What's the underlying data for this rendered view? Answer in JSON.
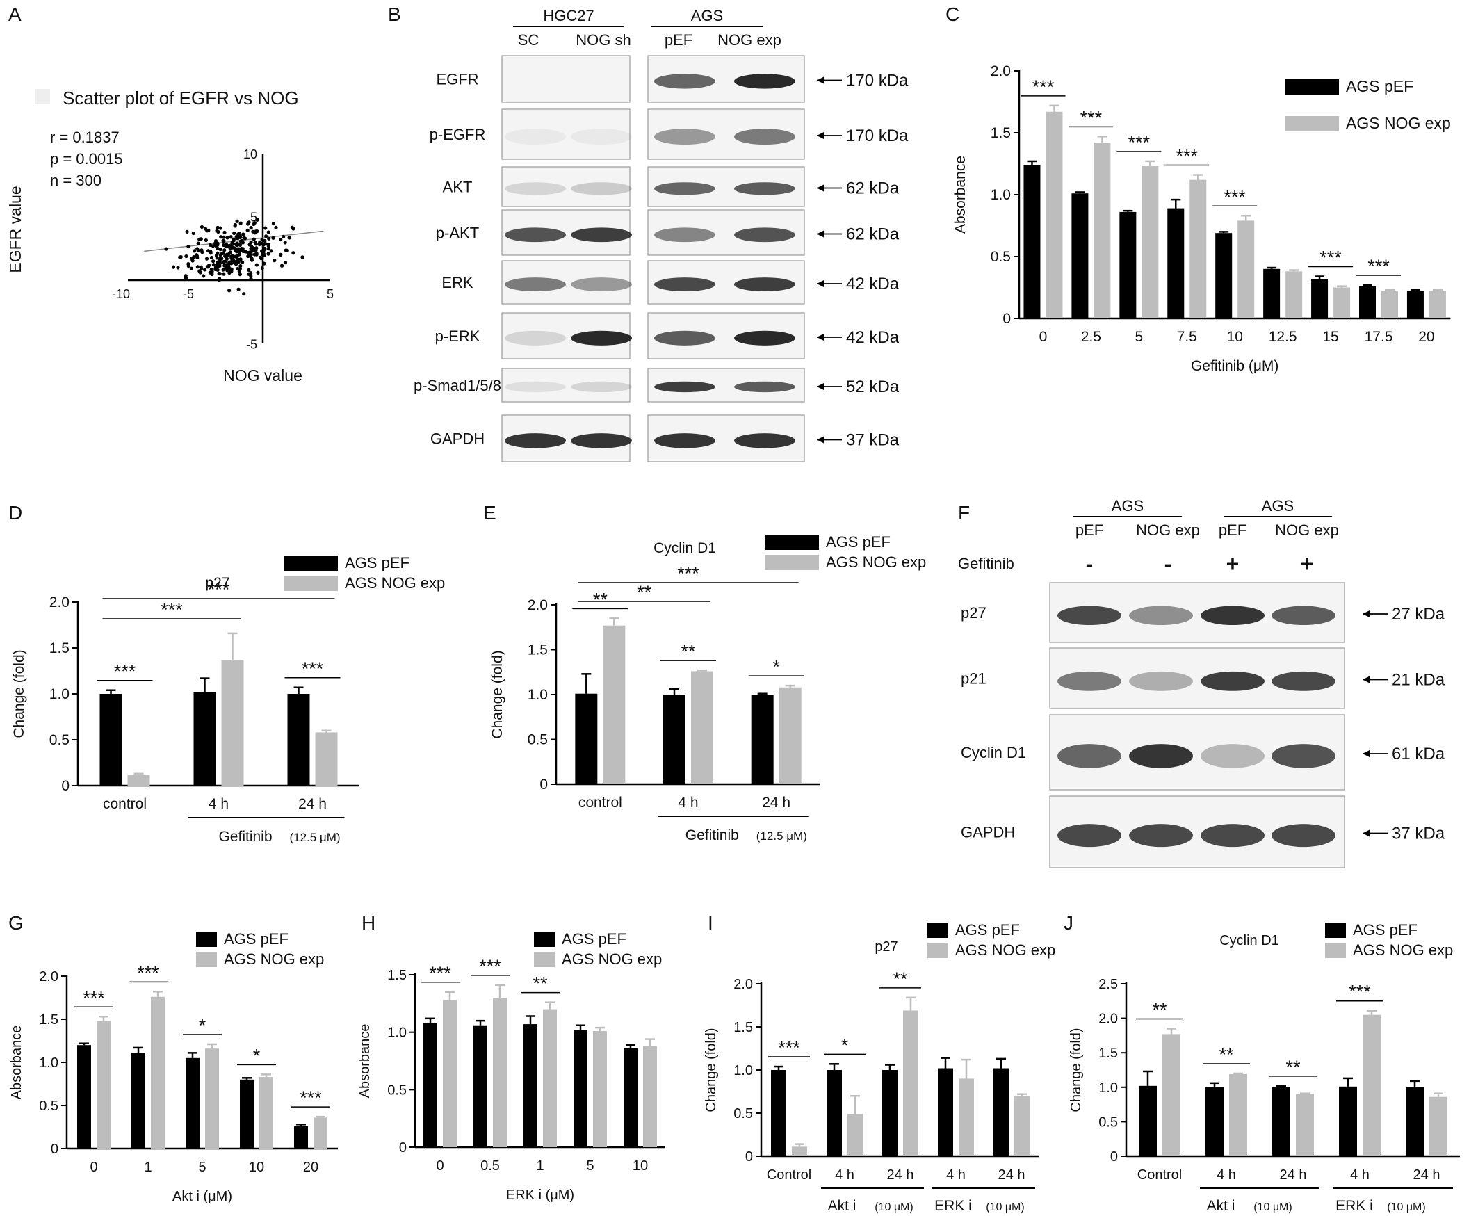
{
  "colors": {
    "pef": "#000000",
    "nog": "#bdbdbd",
    "axis": "#000000",
    "blot_bg": "#f4f4f4",
    "band": "#2a2a2a"
  },
  "panel_letters": [
    "A",
    "B",
    "C",
    "D",
    "E",
    "F",
    "G",
    "H",
    "I",
    "J"
  ],
  "panelA": {
    "title": "Scatter  plot   of EGFR vs NOG",
    "stats": [
      "r = 0.1837",
      "p = 0.0015",
      "n = 300"
    ],
    "xlabel": "NOG value",
    "ylabel": "EGFR value",
    "xticks": [
      "-10",
      "-5",
      "5"
    ],
    "yticks": [
      "10",
      "5",
      "-5"
    ]
  },
  "panelB": {
    "group_labels": [
      "HGC27",
      "AGS"
    ],
    "lane_labels": [
      "SC",
      "NOG sh",
      "pEF",
      "NOG exp"
    ],
    "proteins": [
      "EGFR",
      "p-EGFR",
      "AKT",
      "p-AKT",
      "ERK",
      "p-ERK",
      "p-Smad1/5/8",
      "GAPDH"
    ],
    "sizes": [
      "170 kDa",
      "170 kDa",
      "62 kDa",
      "62 kDa",
      "42 kDa",
      "42 kDa",
      "52 kDa",
      "37 kDa"
    ]
  },
  "panelF": {
    "group_labels": [
      "AGS",
      "AGS"
    ],
    "lane_labels": [
      "pEF",
      "NOG exp",
      "pEF",
      "NOG exp"
    ],
    "treatment_label": "Gefitinib",
    "treatment_signs": [
      "-",
      "-",
      "+",
      "+"
    ],
    "proteins": [
      "p27",
      "p21",
      "Cyclin D1",
      "GAPDH"
    ],
    "sizes": [
      "27  kDa",
      "21  kDa",
      "61  kDa",
      "37  kDa"
    ]
  },
  "chart_data": [
    {
      "id": "A",
      "type": "scatter",
      "title": "Scatter  plot   of EGFR vs NOG",
      "xlabel": "NOG value",
      "ylabel": "EGFR value",
      "xlim": [
        -10,
        5
      ],
      "ylim": [
        -5,
        10
      ],
      "annotations": [
        "r = 0.1837",
        "p = 0.0015",
        "n = 300"
      ],
      "n_points": 300
    },
    {
      "id": "C",
      "type": "bar",
      "xlabel": "Gefitinib (μM)",
      "ylabel": "Absorbance",
      "ylim": [
        0,
        2.0
      ],
      "yticks": [
        "0",
        "0.5",
        "1.0",
        "1.5",
        "2.0"
      ],
      "categories": [
        "0",
        "2.5",
        "5",
        "7.5",
        "10",
        "12.5",
        "15",
        "17.5",
        "20"
      ],
      "series": [
        {
          "name": "AGS pEF",
          "values": [
            1.24,
            1.01,
            0.86,
            0.89,
            0.69,
            0.4,
            0.32,
            0.26,
            0.22
          ],
          "err": [
            0.03,
            0.01,
            0.01,
            0.07,
            0.01,
            0.01,
            0.02,
            0.01,
            0.01
          ]
        },
        {
          "name": "AGS NOG exp",
          "values": [
            1.67,
            1.42,
            1.23,
            1.12,
            0.79,
            0.38,
            0.25,
            0.22,
            0.22
          ],
          "err": [
            0.05,
            0.05,
            0.04,
            0.04,
            0.04,
            0.01,
            0.01,
            0.01,
            0.01
          ]
        }
      ],
      "sig": [
        {
          "pos": 0,
          "label": "***"
        },
        {
          "pos": 1,
          "label": "***"
        },
        {
          "pos": 2,
          "label": "***"
        },
        {
          "pos": 3,
          "label": "***"
        },
        {
          "pos": 4,
          "label": "***"
        },
        {
          "pos": 6,
          "label": "***"
        },
        {
          "pos": 7,
          "label": "***"
        }
      ],
      "legend_position": "top-right"
    },
    {
      "id": "D",
      "type": "bar",
      "title": "p27",
      "ylabel": "Change (fold)",
      "ylim": [
        0,
        2.0
      ],
      "yticks": [
        "0",
        "0.5",
        "1.0",
        "1.5",
        "2.0"
      ],
      "categories": [
        "control",
        "4 h",
        "24 h"
      ],
      "group_label": "Gefitinib",
      "group_unit": "(12.5 μM)",
      "series": [
        {
          "name": "AGS pEF",
          "values": [
            1.0,
            1.02,
            1.0
          ],
          "err": [
            0.04,
            0.15,
            0.07
          ]
        },
        {
          "name": "AGS NOG exp",
          "values": [
            0.12,
            1.37,
            0.58
          ],
          "err": [
            0.01,
            0.29,
            0.02
          ]
        }
      ],
      "sig": [
        {
          "label": "***",
          "type": "pair",
          "pos": 0
        },
        {
          "label": "***",
          "type": "pair",
          "pos": 2
        }
      ],
      "sig_long": [
        {
          "label": "***",
          "from": 0,
          "to": 1
        },
        {
          "label": "***",
          "from": 0,
          "to": 2
        }
      ],
      "legend_position": "top-right"
    },
    {
      "id": "E",
      "type": "bar",
      "title": "Cyclin D1",
      "ylabel": "Change (fold)",
      "ylim": [
        0,
        2.0
      ],
      "yticks": [
        "0",
        "0.5",
        "1.0",
        "1.5",
        "2.0"
      ],
      "categories": [
        "control",
        "4 h",
        "24 h"
      ],
      "group_label": "Gefitinib",
      "group_unit": "(12.5 μM)",
      "series": [
        {
          "name": "AGS pEF",
          "values": [
            1.01,
            1.0,
            1.0
          ],
          "err": [
            0.22,
            0.06,
            0.01
          ]
        },
        {
          "name": "AGS NOG exp",
          "values": [
            1.77,
            1.26,
            1.08
          ],
          "err": [
            0.08,
            0.01,
            0.02
          ]
        }
      ],
      "sig": [
        {
          "label": "**",
          "type": "pair",
          "pos": 0
        },
        {
          "label": "**",
          "type": "pair",
          "pos": 1
        },
        {
          "label": "*",
          "type": "pair",
          "pos": 2
        }
      ],
      "sig_long": [
        {
          "label": "**",
          "from": 0,
          "to": 1
        },
        {
          "label": "***",
          "from": 0,
          "to": 2
        }
      ],
      "legend_position": "top-right"
    },
    {
      "id": "G",
      "type": "bar",
      "xlabel": "Akt i (μM)",
      "ylabel": "Absorbance",
      "ylim": [
        0,
        2.0
      ],
      "yticks": [
        "0",
        "0.5",
        "1.0",
        "1.5",
        "2.0"
      ],
      "categories": [
        "0",
        "1",
        "5",
        "10",
        "20"
      ],
      "series": [
        {
          "name": "AGS pEF",
          "values": [
            1.2,
            1.11,
            1.05,
            0.8,
            0.26
          ],
          "err": [
            0.02,
            0.06,
            0.06,
            0.02,
            0.02
          ]
        },
        {
          "name": "AGS NOG exp",
          "values": [
            1.48,
            1.76,
            1.16,
            0.83,
            0.36
          ],
          "err": [
            0.05,
            0.06,
            0.05,
            0.03,
            0.01
          ]
        }
      ],
      "sig": [
        {
          "pos": 0,
          "label": "***"
        },
        {
          "pos": 1,
          "label": "***"
        },
        {
          "pos": 2,
          "label": "*"
        },
        {
          "pos": 3,
          "label": "*"
        },
        {
          "pos": 4,
          "label": "***"
        }
      ],
      "legend_position": "top-right"
    },
    {
      "id": "H",
      "type": "bar",
      "xlabel": "ERK i (μM)",
      "ylabel": "Absorbance",
      "ylim": [
        0,
        1.5
      ],
      "yticks": [
        "0",
        "0.5",
        "1.0",
        "1.5"
      ],
      "categories": [
        "0",
        "0.5",
        "1",
        "5",
        "10"
      ],
      "series": [
        {
          "name": "AGS pEF",
          "values": [
            1.08,
            1.06,
            1.07,
            1.02,
            0.86
          ],
          "err": [
            0.04,
            0.04,
            0.07,
            0.04,
            0.03
          ]
        },
        {
          "name": "AGS NOG exp",
          "values": [
            1.28,
            1.3,
            1.2,
            1.01,
            0.88
          ],
          "err": [
            0.07,
            0.11,
            0.06,
            0.03,
            0.06
          ]
        }
      ],
      "sig": [
        {
          "pos": 0,
          "label": "***"
        },
        {
          "pos": 1,
          "label": "***"
        },
        {
          "pos": 2,
          "label": "**"
        }
      ],
      "legend_position": "top-right"
    },
    {
      "id": "I",
      "type": "bar",
      "title": "p27",
      "ylabel": "Change (fold)",
      "ylim": [
        0,
        2.0
      ],
      "yticks": [
        "0",
        "0.5",
        "1.0",
        "1.5",
        "2.0"
      ],
      "categories": [
        "Control",
        "4 h",
        "24 h",
        "4 h",
        "24 h"
      ],
      "groups": [
        {
          "label": "Akt i",
          "unit": "(10 μM)",
          "from": 1,
          "to": 2
        },
        {
          "label": "ERK i",
          "unit": "(10 μM)",
          "from": 3,
          "to": 4
        }
      ],
      "series": [
        {
          "name": "AGS pEF",
          "values": [
            1.0,
            1.0,
            1.0,
            1.02,
            1.02
          ],
          "err": [
            0.04,
            0.07,
            0.06,
            0.12,
            0.11
          ]
        },
        {
          "name": "AGS NOG exp",
          "values": [
            0.11,
            0.49,
            1.69,
            0.9,
            0.7
          ],
          "err": [
            0.03,
            0.21,
            0.15,
            0.22,
            0.02
          ]
        }
      ],
      "sig": [
        {
          "pos": 0,
          "label": "***"
        },
        {
          "pos": 1,
          "label": "*"
        },
        {
          "pos": 2,
          "label": "**"
        }
      ],
      "legend_position": "top-right"
    },
    {
      "id": "J",
      "type": "bar",
      "title": "Cyclin D1",
      "ylabel": "Change (fold)",
      "ylim": [
        0,
        2.5
      ],
      "yticks": [
        "0",
        "0.5",
        "1.0",
        "1.5",
        "2.0",
        "2.5"
      ],
      "categories": [
        "Control",
        "4 h",
        "24 h",
        "4 h",
        "24 h"
      ],
      "groups": [
        {
          "label": "Akt i",
          "unit": "(10 μM)",
          "from": 1,
          "to": 2
        },
        {
          "label": "ERK i",
          "unit": "(10 μM)",
          "from": 3,
          "to": 4
        }
      ],
      "series": [
        {
          "name": "AGS pEF",
          "values": [
            1.02,
            1.0,
            1.0,
            1.01,
            1.0
          ],
          "err": [
            0.21,
            0.06,
            0.02,
            0.12,
            0.09
          ]
        },
        {
          "name": "AGS NOG exp",
          "values": [
            1.77,
            1.19,
            0.9,
            2.05,
            0.86
          ],
          "err": [
            0.08,
            0.01,
            0.01,
            0.06,
            0.05
          ]
        }
      ],
      "sig": [
        {
          "pos": 0,
          "label": "**"
        },
        {
          "pos": 1,
          "label": "**"
        },
        {
          "pos": 2,
          "label": "**"
        },
        {
          "pos": 3,
          "label": "***"
        }
      ],
      "legend_position": "top-right"
    }
  ]
}
